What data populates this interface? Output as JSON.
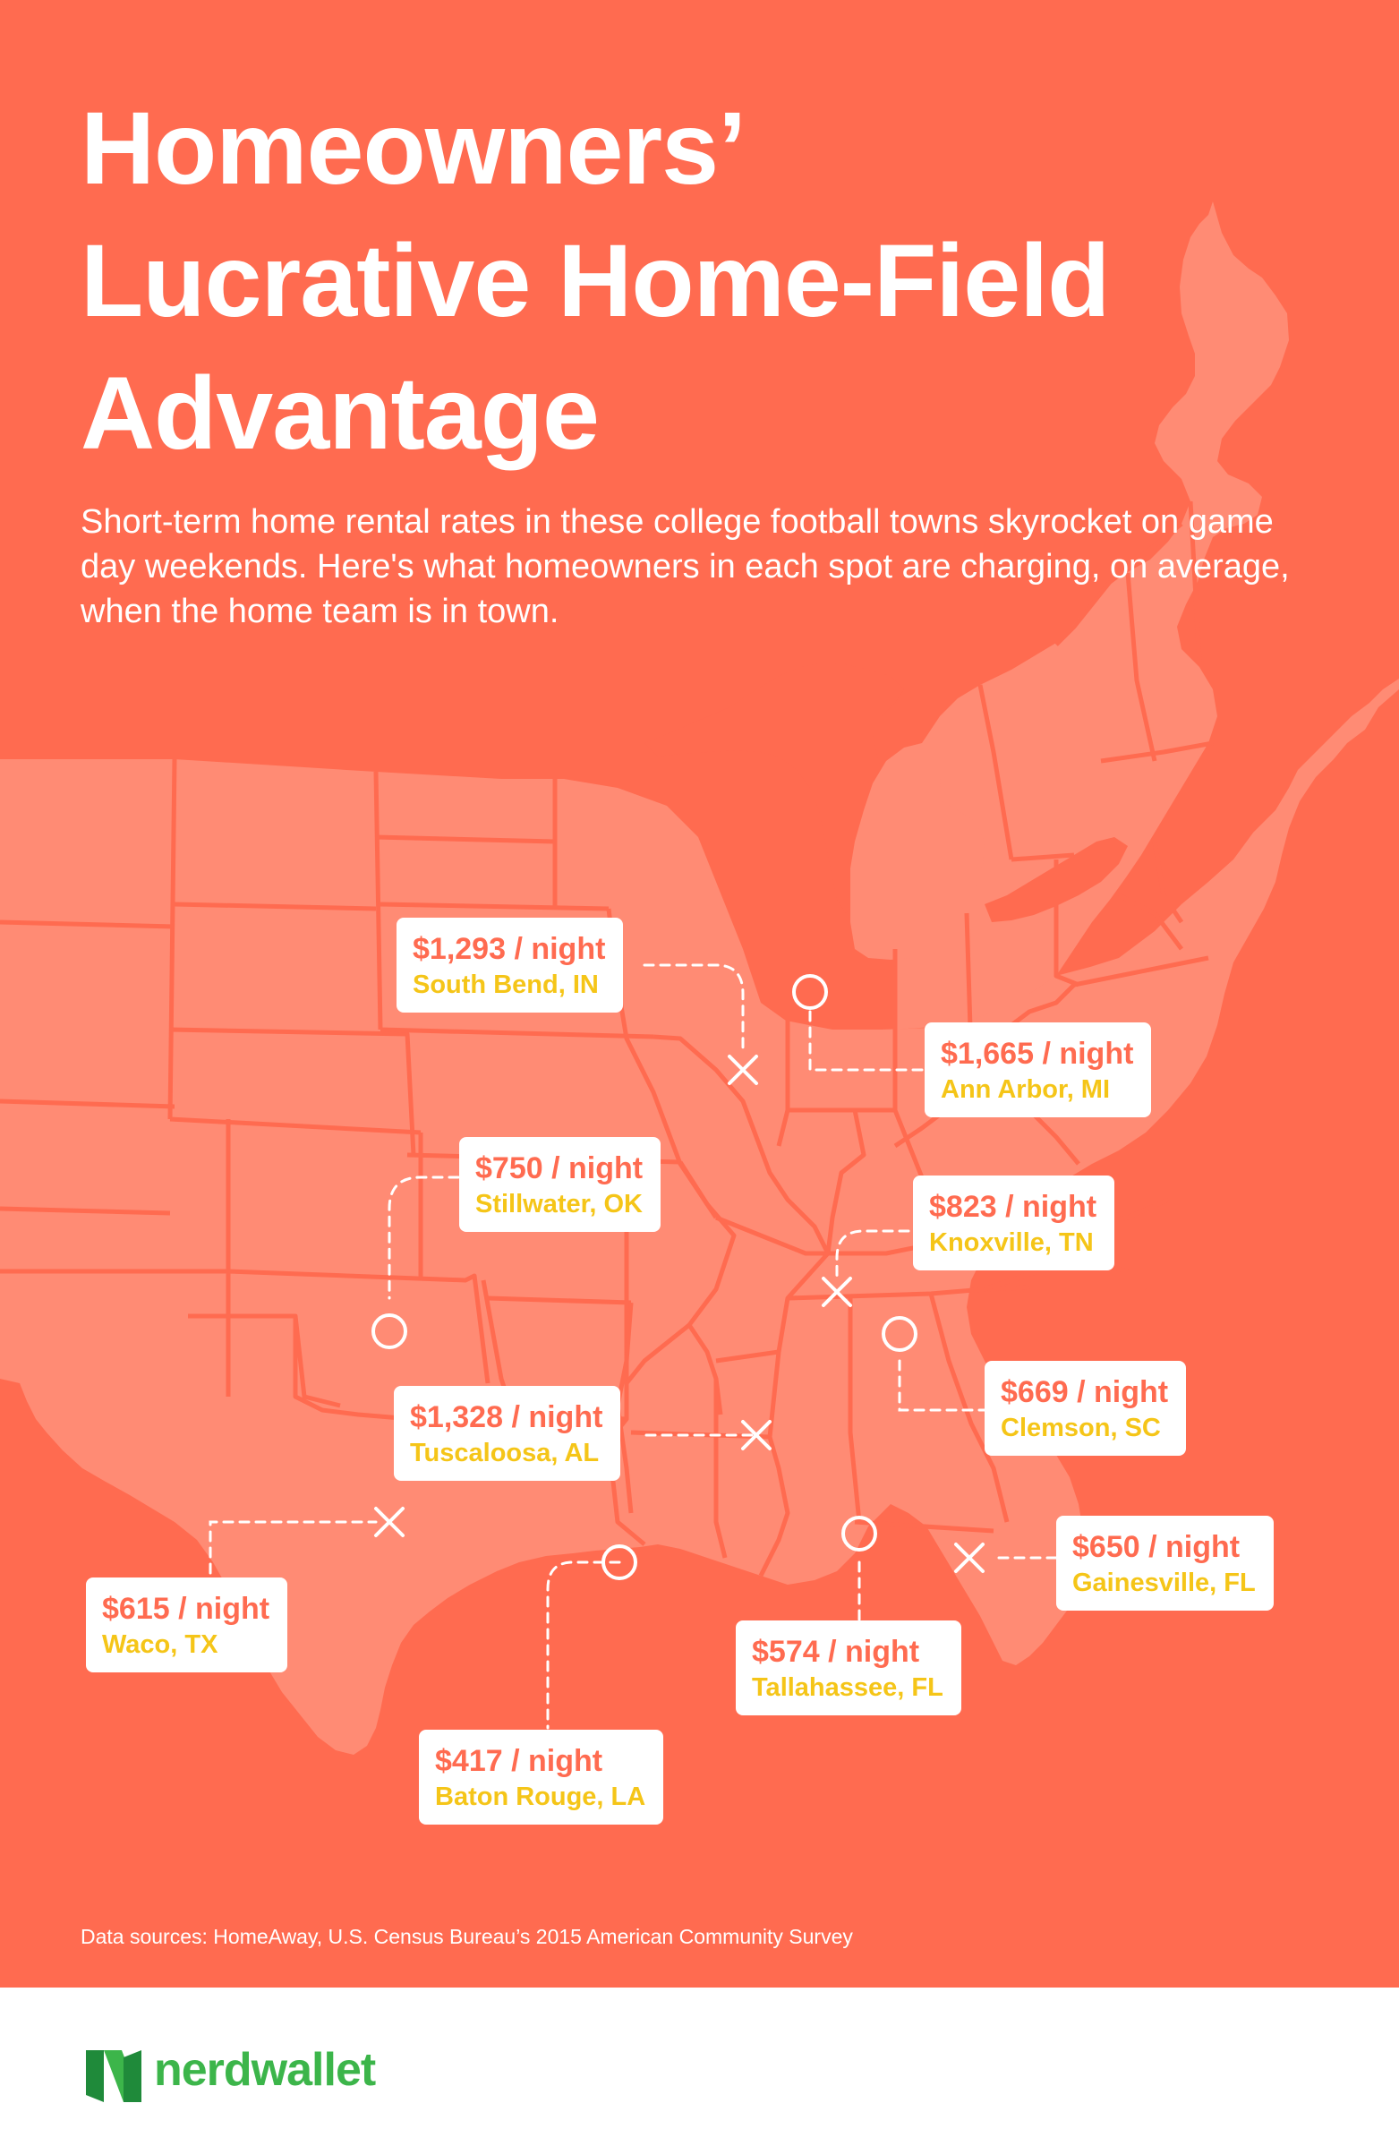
{
  "colors": {
    "background": "#ff6b50",
    "land": "#ff8b74",
    "state_border": "#ff6b50",
    "price_text": "#ff6b50",
    "city_text": "#f5c518",
    "marker": "#ffffff",
    "brand_green": "#3cb54a"
  },
  "header": {
    "title_lines": [
      "Homeowners’",
      "Lucrative Home-Field",
      "Advantage"
    ],
    "subtitle": "Short-term home rental rates in these college football towns skyrocket on game day weekends. Here's what homeowners in each spot are charging, on average, when the home team is in town."
  },
  "locations": [
    {
      "price": "$1,293 / night",
      "city": "South Bend, IN",
      "marker": "x"
    },
    {
      "price": "$1,665 / night",
      "city": "Ann Arbor, MI",
      "marker": "circle"
    },
    {
      "price": "$750 / night",
      "city": "Stillwater, OK",
      "marker": "circle"
    },
    {
      "price": "$823 / night",
      "city": "Knoxville, TN",
      "marker": "x"
    },
    {
      "price": "$669 / night",
      "city": "Clemson, SC",
      "marker": "circle"
    },
    {
      "price": "$1,328 / night",
      "city": "Tuscaloosa, AL",
      "marker": "x"
    },
    {
      "price": "$650 / night",
      "city": "Gainesville, FL",
      "marker": "x"
    },
    {
      "price": "$615 / night",
      "city": "Waco, TX",
      "marker": "x"
    },
    {
      "price": "$574 / night",
      "city": "Tallahassee, FL",
      "marker": "circle"
    },
    {
      "price": "$417 / night",
      "city": "Baton Rouge, LA",
      "marker": "circle"
    }
  ],
  "source": "Data sources: HomeAway, U.S. Census Bureau’s 2015 American Community Survey",
  "footer": {
    "logo_text": "nerdwallet",
    "logo_icon": "nerdwallet-n-icon"
  }
}
